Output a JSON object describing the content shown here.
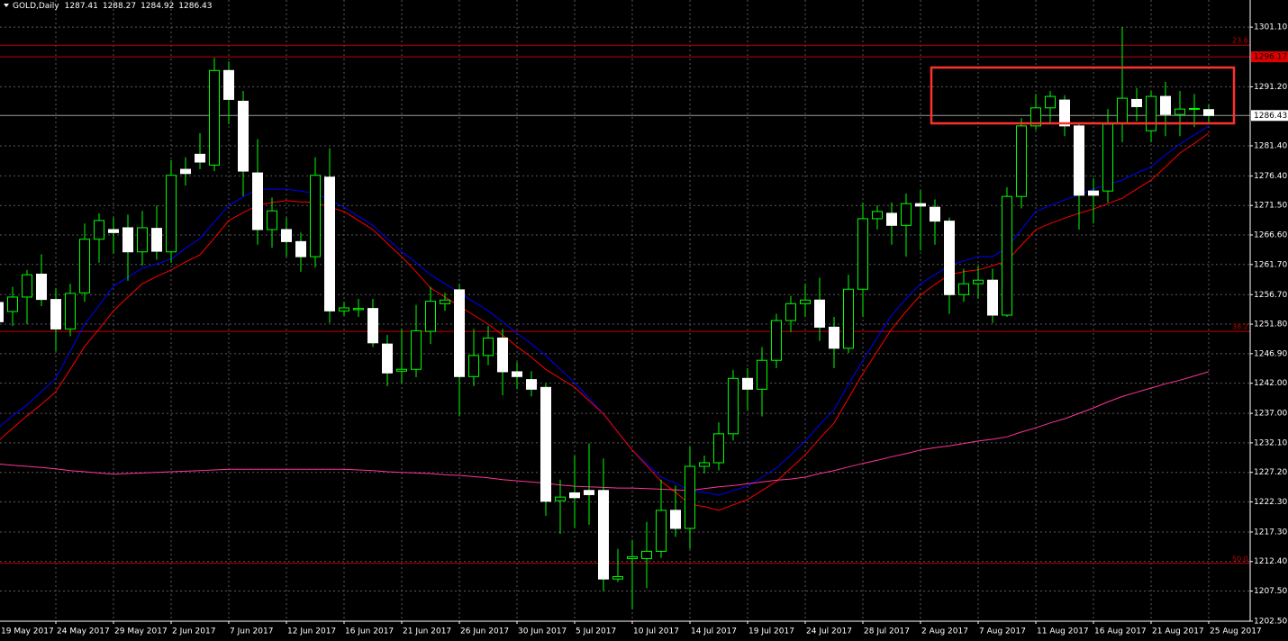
{
  "chart_data": {
    "type": "candlestick",
    "symbol": "GOLD,Daily",
    "categories": [
      "19 May 2017",
      null,
      null,
      null,
      "24 May 2017",
      null,
      null,
      null,
      "29 May 2017",
      null,
      null,
      null,
      "2 Jun 2017",
      null,
      null,
      null,
      "7 Jun 2017",
      null,
      null,
      null,
      "12 Jun 2017",
      null,
      null,
      null,
      "16 Jun 2017",
      null,
      null,
      null,
      "21 Jun 2017",
      null,
      null,
      null,
      "26 Jun 2017",
      null,
      null,
      null,
      "30 Jun 2017",
      null,
      null,
      null,
      "5 Jul 2017",
      null,
      null,
      null,
      "10 Jul 2017",
      null,
      null,
      null,
      "14 Jul 2017",
      null,
      null,
      null,
      "19 Jul 2017",
      null,
      null,
      null,
      "24 Jul 2017",
      null,
      null,
      null,
      "28 Jul 2017",
      null,
      null,
      null,
      "2 Aug 2017",
      null,
      null,
      null,
      "7 Aug 2017",
      null,
      null,
      null,
      "11 Aug 2017",
      null,
      null,
      null,
      "16 Aug 2017",
      null,
      null,
      null,
      "21 Aug 2017",
      null,
      null,
      null,
      "25 Aug 2017"
    ],
    "open": [
      1255.4,
      1253.9,
      1256.3,
      1260.1,
      1255.9,
      1251.0,
      1257.0,
      1265.9,
      1267.5,
      1267.8,
      1263.8,
      1267.7,
      1263.8,
      1277.5,
      1280.0,
      1278.2,
      1293.9,
      1288.8,
      1276.9,
      1267.5,
      1267.5,
      1265.5,
      1263.0,
      1276.2,
      1254.0,
      1254.2,
      1254.4,
      1248.5,
      1244.0,
      1244.3,
      1250.6,
      1255.2,
      1257.5,
      1243.1,
      1246.6,
      1249.5,
      1243.9,
      1242.6,
      1241.3,
      1222.5,
      1223.8,
      1224.2,
      1224.2,
      1209.5,
      1212.9,
      1212.9,
      1214.1,
      1220.9,
      1217.9,
      1228.2,
      1228.8,
      1233.6,
      1242.8,
      1241.0,
      1245.8,
      1252.4,
      1255.2,
      1255.8,
      1251.3,
      1247.8,
      1257.6,
      1269.3,
      1270.2,
      1268.2,
      1271.8,
      1271.2,
      1268.9,
      1256.7,
      1258.5,
      1259.1,
      1253.3,
      1273.0,
      1284.7,
      1287.7,
      1289.0,
      1284.7,
      1273.9,
      1273.9,
      1285.1,
      1289.1,
      1283.9,
      1289.6,
      1286.6,
      1287.5,
      1287.41
    ],
    "high": [
      1256.5,
      1258.0,
      1260.8,
      1263.4,
      1257.8,
      1258.5,
      1268.5,
      1270.2,
      1269.5,
      1270.0,
      1270.6,
      1271.5,
      1279.0,
      1279.5,
      1283.5,
      1296.0,
      1295.4,
      1290.5,
      1282.5,
      1272.8,
      1269.5,
      1267.0,
      1279.5,
      1281.0,
      1255.5,
      1256.0,
      1256.0,
      1250.0,
      1251.0,
      1255.0,
      1258.0,
      1257.0,
      1258.5,
      1251.0,
      1251.5,
      1251.0,
      1245.5,
      1244.0,
      1242.0,
      1226.0,
      1230.0,
      1232.0,
      1229.5,
      1214.5,
      1216.0,
      1219.0,
      1226.0,
      1225.0,
      1231.5,
      1230.0,
      1235.5,
      1244.2,
      1244.5,
      1248.0,
      1253.5,
      1256.5,
      1258.5,
      1259.5,
      1253.0,
      1260.0,
      1272.0,
      1271.5,
      1272.0,
      1273.5,
      1274.0,
      1272.5,
      1269.5,
      1261.0,
      1261.5,
      1261.0,
      1274.5,
      1286.0,
      1290.0,
      1290.5,
      1289.8,
      1285.0,
      1276.0,
      1287.5,
      1301.1,
      1291.0,
      1290.5,
      1292.0,
      1290.5,
      1290.0,
      1288.27
    ],
    "low": [
      1250.8,
      1251.5,
      1251.8,
      1254.8,
      1247.3,
      1249.8,
      1255.5,
      1262.0,
      1263.5,
      1259.0,
      1261.5,
      1262.5,
      1262.0,
      1274.8,
      1277.5,
      1277.2,
      1285.0,
      1273.0,
      1265.0,
      1264.5,
      1263.0,
      1260.5,
      1261.2,
      1252.0,
      1253.2,
      1253.0,
      1248.0,
      1241.5,
      1242.0,
      1243.0,
      1248.5,
      1254.0,
      1236.5,
      1241.5,
      1245.0,
      1240.0,
      1241.0,
      1239.8,
      1220.0,
      1217.0,
      1218.0,
      1218.5,
      1207.5,
      1209.0,
      1204.5,
      1208.0,
      1213.0,
      1216.5,
      1214.5,
      1227.0,
      1227.5,
      1232.5,
      1237.5,
      1236.5,
      1244.5,
      1250.5,
      1253.0,
      1249.0,
      1244.5,
      1247.0,
      1253.0,
      1267.5,
      1265.0,
      1263.0,
      1264.0,
      1265.0,
      1253.5,
      1255.5,
      1256.0,
      1252.0,
      1253.0,
      1271.0,
      1284.0,
      1285.0,
      1283.0,
      1267.5,
      1268.5,
      1272.0,
      1282.0,
      1285.5,
      1282.0,
      1283.0,
      1283.0,
      1284.5,
      1284.92
    ],
    "close": [
      1252.2,
      1256.3,
      1260.0,
      1255.9,
      1251.0,
      1256.9,
      1265.9,
      1269.0,
      1267.0,
      1263.8,
      1267.8,
      1263.9,
      1276.5,
      1276.8,
      1278.7,
      1293.9,
      1289.1,
      1277.2,
      1267.5,
      1270.6,
      1265.5,
      1263.0,
      1276.5,
      1254.0,
      1254.5,
      1254.4,
      1248.7,
      1243.7,
      1244.3,
      1250.7,
      1255.6,
      1255.8,
      1243.1,
      1246.6,
      1249.5,
      1243.9,
      1243.1,
      1241.0,
      1222.4,
      1223.1,
      1223.0,
      1223.5,
      1209.5,
      1209.9,
      1213.2,
      1214.1,
      1220.9,
      1217.9,
      1228.2,
      1228.8,
      1233.6,
      1242.8,
      1241.0,
      1245.8,
      1252.4,
      1255.2,
      1255.8,
      1251.3,
      1247.8,
      1257.6,
      1269.3,
      1270.5,
      1268.2,
      1271.8,
      1271.4,
      1268.9,
      1256.7,
      1258.5,
      1259.1,
      1253.3,
      1273.0,
      1284.7,
      1287.7,
      1289.6,
      1284.7,
      1273.2,
      1273.2,
      1285.0,
      1289.3,
      1287.9,
      1289.6,
      1286.6,
      1287.5,
      1287.6,
      1286.43
    ],
    "up_color": "#00ff00",
    "down_color": "#ffffff",
    "wick_color": "#00ff00",
    "lines": [
      {
        "color": "#0000ff",
        "values": [
          1234.6,
          1236.6,
          1238.4,
          1240.6,
          1242.8,
          1247.3,
          1251.8,
          1254.9,
          1258.1,
          1259.6,
          1261.1,
          1261.8,
          1262.6,
          1264.4,
          1266.0,
          1268.8,
          1271.5,
          1272.9,
          1274.2,
          1274.2,
          1274.2,
          1273.9,
          1273.5,
          1272.4,
          1271.2,
          1269.7,
          1268.2,
          1266.0,
          1263.8,
          1262.0,
          1260.0,
          1258.5,
          1257.0,
          1255.5,
          1254.0,
          1252.2,
          1250.3,
          1248.5,
          1246.6,
          1244.3,
          1242.1,
          1239.5,
          1236.9,
          1233.9,
          1230.9,
          1228.6,
          1226.4,
          1225.4,
          1224.2,
          1223.9,
          1223.4,
          1224.2,
          1224.9,
          1226.4,
          1227.9,
          1230.1,
          1232.4,
          1235.1,
          1237.6,
          1241.8,
          1245.8,
          1249.6,
          1253.3,
          1256.0,
          1258.5,
          1260.0,
          1261.5,
          1262.3,
          1263.0,
          1263.0,
          1264.5,
          1267.5,
          1270.5,
          1271.5,
          1272.4,
          1273.3,
          1274.2,
          1275.0,
          1275.7,
          1276.9,
          1277.9,
          1279.9,
          1281.7,
          1283.2,
          1284.7
        ]
      },
      {
        "color": "#ff0000",
        "values": [
          1232.4,
          1234.5,
          1236.6,
          1238.5,
          1240.6,
          1244.3,
          1248.1,
          1251.0,
          1254.0,
          1256.3,
          1258.5,
          1259.7,
          1260.8,
          1262.1,
          1263.3,
          1266.1,
          1269.0,
          1270.3,
          1271.5,
          1272.0,
          1272.3,
          1272.1,
          1272.0,
          1271.2,
          1270.5,
          1269.0,
          1267.5,
          1265.2,
          1263.0,
          1260.5,
          1257.8,
          1256.3,
          1254.8,
          1253.3,
          1251.8,
          1250.0,
          1248.1,
          1246.3,
          1244.3,
          1242.8,
          1241.3,
          1239.1,
          1236.9,
          1233.9,
          1230.9,
          1228.3,
          1225.7,
          1223.9,
          1221.9,
          1221.5,
          1220.9,
          1221.8,
          1222.7,
          1224.2,
          1225.7,
          1227.9,
          1230.1,
          1232.8,
          1235.4,
          1239.5,
          1243.6,
          1247.3,
          1251.0,
          1253.9,
          1256.6,
          1258.4,
          1260.0,
          1260.5,
          1260.8,
          1261.5,
          1262.3,
          1264.9,
          1267.5,
          1268.5,
          1269.4,
          1270.2,
          1270.9,
          1271.8,
          1272.7,
          1274.2,
          1275.7,
          1277.9,
          1280.2,
          1281.8,
          1283.5
        ]
      },
      {
        "color": "#ff3399",
        "values": [
          1228.6,
          1228.4,
          1228.2,
          1228.0,
          1227.8,
          1227.5,
          1227.3,
          1227.1,
          1226.9,
          1227.0,
          1227.1,
          1227.2,
          1227.3,
          1227.4,
          1227.5,
          1227.6,
          1227.7,
          1227.7,
          1227.7,
          1227.7,
          1227.7,
          1227.7,
          1227.7,
          1227.7,
          1227.7,
          1227.6,
          1227.5,
          1227.3,
          1227.2,
          1227.1,
          1227.0,
          1226.8,
          1226.7,
          1226.5,
          1226.3,
          1226.0,
          1225.8,
          1225.6,
          1225.4,
          1225.1,
          1224.9,
          1224.8,
          1224.7,
          1224.6,
          1224.6,
          1224.5,
          1224.4,
          1224.3,
          1224.2,
          1224.5,
          1224.8,
          1225.0,
          1225.3,
          1225.6,
          1225.9,
          1226.1,
          1226.4,
          1227.0,
          1227.5,
          1228.1,
          1228.7,
          1229.2,
          1229.8,
          1230.3,
          1230.9,
          1231.3,
          1231.6,
          1232.0,
          1232.4,
          1232.7,
          1233.1,
          1233.9,
          1234.6,
          1235.4,
          1236.1,
          1237.0,
          1237.9,
          1238.9,
          1239.8,
          1240.5,
          1241.2,
          1241.9,
          1242.5,
          1243.2,
          1243.9
        ]
      }
    ],
    "fib_levels": [
      {
        "value": 1298.1,
        "label": "23.6"
      },
      {
        "value": 1250.6,
        "label": "38.2"
      },
      {
        "value": 1212.1,
        "label": "50.0"
      }
    ],
    "price_level": 1296.17,
    "ylim": [
      1202.5,
      1305.6
    ],
    "yticks": [
      {
        "value": 1301.1,
        "label": "1301.10"
      },
      {
        "value": 1291.2,
        "label": "1291.20"
      },
      {
        "value": 1281.4,
        "label": "1281.40"
      },
      {
        "value": 1276.4,
        "label": "1276.40"
      },
      {
        "value": 1271.5,
        "label": "1271.50"
      },
      {
        "value": 1266.6,
        "label": "1266.60"
      },
      {
        "value": 1261.7,
        "label": "1261.70"
      },
      {
        "value": 1256.7,
        "label": "1256.70"
      },
      {
        "value": 1251.8,
        "label": "1251.80"
      },
      {
        "value": 1246.9,
        "label": "1246.90"
      },
      {
        "value": 1242.0,
        "label": "1242.00"
      },
      {
        "value": 1237.0,
        "label": "1237.00"
      },
      {
        "value": 1232.1,
        "label": "1232.10"
      },
      {
        "value": 1227.2,
        "label": "1227.20"
      },
      {
        "value": 1222.3,
        "label": "1222.30"
      },
      {
        "value": 1217.3,
        "label": "1217.30"
      },
      {
        "value": 1212.4,
        "label": "1212.40"
      },
      {
        "value": 1207.5,
        "label": "1207.50"
      },
      {
        "value": 1202.5,
        "label": "1202.50"
      }
    ],
    "grid": true
  }
}
